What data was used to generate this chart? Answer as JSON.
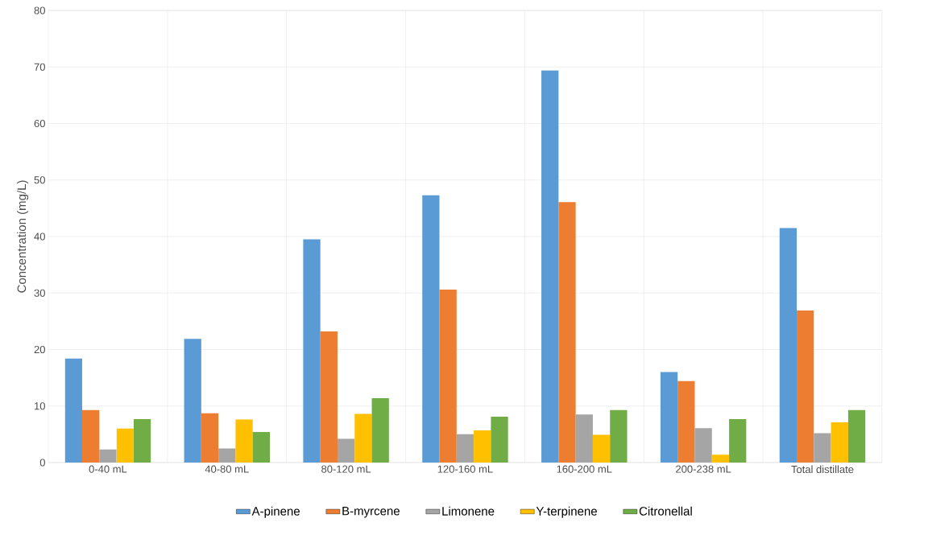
{
  "chart_data": {
    "type": "bar",
    "ylabel": "Concentration (mg/L)",
    "categories": [
      "0-40 mL",
      "40-80 mL",
      "80-120 mL",
      "120-160 mL",
      "160-200 mL",
      "200-238 mL",
      "Total distillate"
    ],
    "series": [
      {
        "name": "A-pinene",
        "color": "#5b9bd5",
        "values": [
          18.4,
          21.9,
          39.5,
          47.3,
          69.4,
          16.0,
          41.5
        ]
      },
      {
        "name": "B-myrcene",
        "color": "#ed7d31",
        "values": [
          9.3,
          8.7,
          23.2,
          30.6,
          46.1,
          14.4,
          26.9
        ]
      },
      {
        "name": "Limonene",
        "color": "#a5a5a5",
        "values": [
          2.3,
          2.5,
          4.2,
          5.0,
          8.5,
          6.1,
          5.2
        ]
      },
      {
        "name": "Y-terpinene",
        "color": "#ffc000",
        "values": [
          6.0,
          7.6,
          8.6,
          5.7,
          4.9,
          1.4,
          7.1
        ]
      },
      {
        "name": "Citronellal",
        "color": "#70ad47",
        "values": [
          7.7,
          5.4,
          11.4,
          8.1,
          9.3,
          7.7,
          9.3
        ]
      }
    ],
    "ylim": [
      0,
      80
    ],
    "yticks": [
      0,
      10,
      20,
      30,
      40,
      50,
      60,
      70,
      80
    ],
    "grid": true,
    "legend": "bottom"
  }
}
